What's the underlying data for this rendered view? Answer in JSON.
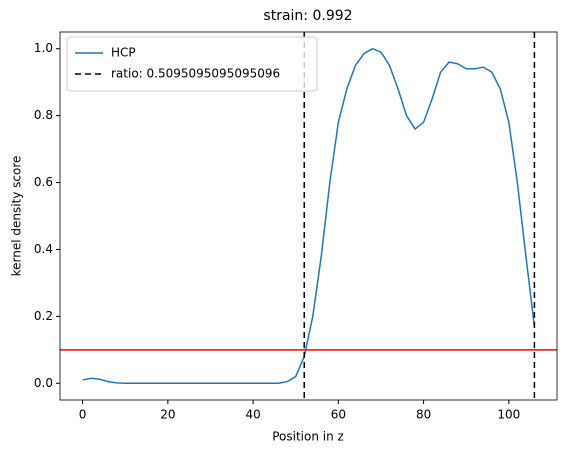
{
  "chart_data": {
    "type": "line",
    "title": "strain: 0.992",
    "x_label": "Position in z",
    "y_label": "kernel density score",
    "x": [
      0,
      2,
      4,
      6,
      8,
      10,
      12,
      14,
      16,
      18,
      20,
      22,
      24,
      26,
      28,
      30,
      32,
      34,
      36,
      38,
      40,
      42,
      44,
      46,
      48,
      50,
      52,
      54,
      56,
      58,
      60,
      62,
      64,
      66,
      68,
      70,
      72,
      74,
      76,
      78,
      80,
      82,
      84,
      86,
      88,
      90,
      92,
      94,
      96,
      98,
      100,
      102,
      104,
      106
    ],
    "series": [
      {
        "name": "HCP",
        "color": "#1f77b4",
        "values": [
          0.01,
          0.015,
          0.012,
          0.005,
          0.001,
          0,
          0,
          0,
          0,
          0,
          0,
          0,
          0,
          0,
          0,
          0,
          0,
          0,
          0,
          0,
          0,
          0,
          0,
          0,
          0.005,
          0.02,
          0.08,
          0.2,
          0.38,
          0.6,
          0.78,
          0.88,
          0.95,
          0.985,
          1.0,
          0.99,
          0.95,
          0.88,
          0.8,
          0.76,
          0.78,
          0.85,
          0.93,
          0.96,
          0.955,
          0.94,
          0.94,
          0.945,
          0.93,
          0.88,
          0.78,
          0.6,
          0.38,
          0.17
        ]
      }
    ],
    "reference_lines": [
      {
        "name": "ratio: 0.5095095095095096",
        "color": "#000000",
        "dash": "6 4",
        "x": [
          52,
          106
        ]
      }
    ],
    "hline": {
      "value": 0.1,
      "color": "#ff0000"
    },
    "xlim": [
      -5.3,
      111.3
    ],
    "ylim": [
      -0.05,
      1.05
    ],
    "xticks": [
      0,
      20,
      40,
      60,
      80,
      100
    ],
    "yticks": [
      {
        "value": 0,
        "label": "0.0"
      },
      0.2,
      0.4,
      0.6,
      0.8,
      {
        "value": 1,
        "label": "1.0"
      }
    ],
    "legend": "upper left"
  }
}
